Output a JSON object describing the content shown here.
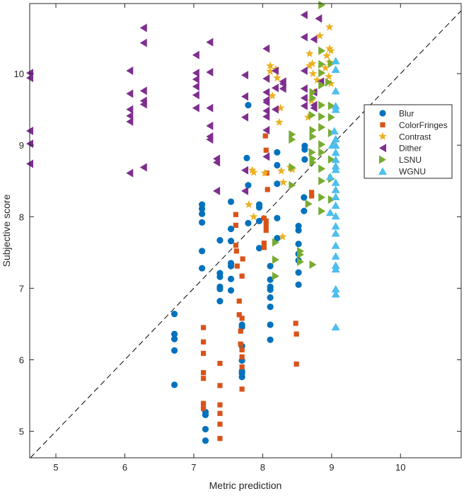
{
  "chart_data": {
    "type": "scatter",
    "title": "",
    "xlabel": "Metric prediction",
    "ylabel": "Subjective score",
    "xlim": [
      4.62,
      10.88
    ],
    "ylim": [
      4.63,
      10.98
    ],
    "xticks": [
      5,
      6,
      7,
      8,
      9,
      10
    ],
    "yticks": [
      5,
      6,
      7,
      8,
      9,
      10
    ],
    "grid": false,
    "legend_position": "right",
    "reference_line": {
      "type": "identity",
      "style": "dashed"
    },
    "series": [
      {
        "name": "Blur",
        "marker": "circle",
        "color": "#0072BD",
        "points": [
          [
            6.72,
            6.64
          ],
          [
            6.72,
            6.36
          ],
          [
            6.72,
            6.29
          ],
          [
            6.72,
            6.13
          ],
          [
            6.72,
            5.65
          ],
          [
            7.12,
            8.17
          ],
          [
            7.12,
            8.11
          ],
          [
            7.12,
            8.04
          ],
          [
            7.12,
            7.92
          ],
          [
            7.12,
            7.52
          ],
          [
            7.12,
            7.28
          ],
          [
            7.17,
            5.27
          ],
          [
            7.17,
            5.23
          ],
          [
            7.17,
            5.03
          ],
          [
            7.17,
            4.87
          ],
          [
            7.38,
            7.67
          ],
          [
            7.38,
            7.21
          ],
          [
            7.38,
            7.16
          ],
          [
            7.38,
            7.02
          ],
          [
            7.38,
            6.99
          ],
          [
            7.38,
            6.82
          ],
          [
            7.54,
            8.21
          ],
          [
            7.54,
            7.83
          ],
          [
            7.54,
            7.66
          ],
          [
            7.54,
            7.35
          ],
          [
            7.54,
            7.31
          ],
          [
            7.54,
            7.13
          ],
          [
            7.54,
            6.97
          ],
          [
            7.7,
            6.49
          ],
          [
            7.7,
            6.46
          ],
          [
            7.7,
            6.19
          ],
          [
            7.7,
            5.99
          ],
          [
            7.7,
            5.84
          ],
          [
            7.7,
            5.81
          ],
          [
            7.7,
            5.76
          ],
          [
            7.79,
            9.56
          ],
          [
            7.77,
            8.82
          ],
          [
            7.79,
            8.44
          ],
          [
            7.79,
            7.91
          ],
          [
            7.95,
            8.17
          ],
          [
            7.95,
            8.13
          ],
          [
            7.95,
            7.94
          ],
          [
            7.95,
            7.56
          ],
          [
            8.11,
            7.31
          ],
          [
            8.11,
            7.12
          ],
          [
            8.11,
            7.02
          ],
          [
            8.11,
            6.98
          ],
          [
            8.11,
            6.87
          ],
          [
            8.11,
            6.74
          ],
          [
            8.11,
            6.49
          ],
          [
            8.11,
            6.28
          ],
          [
            8.21,
            8.9
          ],
          [
            8.21,
            8.72
          ],
          [
            8.21,
            8.46
          ],
          [
            8.21,
            7.98
          ],
          [
            8.21,
            7.7
          ],
          [
            8.52,
            7.87
          ],
          [
            8.52,
            7.81
          ],
          [
            8.52,
            7.62
          ],
          [
            8.52,
            7.48
          ],
          [
            8.52,
            7.39
          ],
          [
            8.52,
            7.22
          ],
          [
            8.52,
            7.05
          ],
          [
            8.6,
            8.27
          ],
          [
            8.6,
            8.08
          ],
          [
            8.61,
            8.99
          ],
          [
            8.61,
            8.94
          ],
          [
            8.61,
            8.8
          ]
        ]
      },
      {
        "name": "ColorFringes",
        "marker": "square",
        "color": "#D95319",
        "points": [
          [
            7.14,
            6.45
          ],
          [
            7.14,
            6.25
          ],
          [
            7.14,
            6.09
          ],
          [
            7.14,
            5.82
          ],
          [
            7.14,
            5.74
          ],
          [
            7.14,
            5.39
          ],
          [
            7.14,
            5.32
          ],
          [
            7.38,
            5.95
          ],
          [
            7.38,
            5.64
          ],
          [
            7.38,
            5.37
          ],
          [
            7.38,
            5.25
          ],
          [
            7.38,
            5.1
          ],
          [
            7.38,
            4.9
          ],
          [
            7.61,
            8.03
          ],
          [
            7.61,
            7.88
          ],
          [
            7.62,
            7.52
          ],
          [
            7.61,
            7.6
          ],
          [
            7.63,
            7.31
          ],
          [
            7.7,
            7.17
          ],
          [
            7.71,
            7.41
          ],
          [
            7.66,
            6.82
          ],
          [
            7.66,
            6.63
          ],
          [
            7.7,
            6.58
          ],
          [
            7.68,
            6.4
          ],
          [
            7.68,
            6.22
          ],
          [
            7.7,
            6.14
          ],
          [
            7.7,
            6.04
          ],
          [
            7.7,
            5.9
          ],
          [
            7.7,
            5.59
          ],
          [
            8.04,
            9.13
          ],
          [
            8.05,
            8.93
          ],
          [
            8.06,
            8.61
          ],
          [
            8.07,
            8.38
          ],
          [
            8.02,
            7.98
          ],
          [
            8.05,
            7.94
          ],
          [
            8.05,
            7.88
          ],
          [
            8.05,
            7.81
          ],
          [
            8.02,
            7.63
          ],
          [
            8.02,
            7.57
          ],
          [
            8.48,
            6.51
          ],
          [
            8.49,
            6.36
          ],
          [
            8.49,
            5.94
          ],
          [
            8.71,
            8.34
          ],
          [
            8.71,
            8.29
          ]
        ]
      },
      {
        "name": "Contrast",
        "marker": "star",
        "color": "#EDB120",
        "points": [
          [
            7.8,
            8.17
          ],
          [
            7.85,
            8.65
          ],
          [
            7.87,
            8.62
          ],
          [
            7.87,
            8.0
          ],
          [
            8.03,
            8.61
          ],
          [
            8.11,
            10.11
          ],
          [
            8.11,
            10.03
          ],
          [
            8.14,
            9.69
          ],
          [
            8.19,
            10.06
          ],
          [
            8.21,
            9.94
          ],
          [
            8.24,
            9.32
          ],
          [
            8.27,
            8.64
          ],
          [
            8.3,
            8.48
          ],
          [
            8.43,
            8.66
          ],
          [
            8.26,
            9.52
          ],
          [
            8.68,
            10.28
          ],
          [
            8.68,
            10.11
          ],
          [
            8.72,
            10.14
          ],
          [
            8.73,
            10.0
          ],
          [
            8.71,
            9.62
          ],
          [
            8.75,
            9.74
          ],
          [
            8.79,
            9.91
          ],
          [
            8.93,
            10.25
          ],
          [
            8.97,
            10.65
          ],
          [
            8.97,
            10.35
          ],
          [
            8.97,
            10.16
          ],
          [
            8.99,
            10.32
          ],
          [
            8.96,
            9.96
          ],
          [
            8.99,
            9.86
          ],
          [
            8.91,
            10.08
          ],
          [
            8.29,
            7.72
          ],
          [
            8.4,
            8.69
          ],
          [
            8.66,
            9.39
          ],
          [
            8.83,
            10.53
          ]
        ]
      },
      {
        "name": "Dither",
        "marker": "triangle-left",
        "color": "#7E2F8E",
        "points": [
          [
            4.62,
            10.01
          ],
          [
            4.62,
            9.94
          ],
          [
            4.62,
            9.2
          ],
          [
            4.62,
            9.02
          ],
          [
            4.62,
            8.74
          ],
          [
            6.07,
            10.04
          ],
          [
            6.07,
            9.72
          ],
          [
            6.07,
            9.5
          ],
          [
            6.07,
            9.41
          ],
          [
            6.07,
            9.33
          ],
          [
            6.07,
            8.61
          ],
          [
            6.27,
            10.64
          ],
          [
            6.27,
            10.43
          ],
          [
            6.27,
            9.76
          ],
          [
            6.27,
            9.62
          ],
          [
            6.27,
            9.57
          ],
          [
            6.27,
            8.69
          ],
          [
            7.03,
            10.26
          ],
          [
            7.03,
            10.01
          ],
          [
            7.03,
            9.92
          ],
          [
            7.03,
            9.82
          ],
          [
            7.03,
            9.7
          ],
          [
            7.03,
            9.52
          ],
          [
            7.23,
            10.44
          ],
          [
            7.23,
            10.02
          ],
          [
            7.23,
            9.52
          ],
          [
            7.23,
            9.27
          ],
          [
            7.23,
            9.12
          ],
          [
            7.23,
            9.08
          ],
          [
            7.33,
            8.81
          ],
          [
            7.33,
            8.76
          ],
          [
            7.33,
            8.36
          ],
          [
            7.74,
            9.98
          ],
          [
            7.74,
            9.68
          ],
          [
            7.74,
            9.39
          ],
          [
            7.74,
            8.65
          ],
          [
            7.74,
            8.36
          ],
          [
            8.05,
            10.35
          ],
          [
            8.05,
            9.93
          ],
          [
            8.05,
            9.74
          ],
          [
            8.05,
            9.63
          ],
          [
            8.05,
            9.6
          ],
          [
            8.05,
            9.48
          ],
          [
            8.05,
            9.4
          ],
          [
            8.05,
            9.21
          ],
          [
            8.05,
            8.84
          ],
          [
            8.18,
            10.04
          ],
          [
            8.18,
            9.8
          ],
          [
            8.18,
            9.5
          ],
          [
            8.29,
            9.89
          ],
          [
            8.29,
            9.86
          ],
          [
            8.29,
            9.79
          ],
          [
            8.6,
            10.82
          ],
          [
            8.6,
            10.51
          ],
          [
            8.6,
            10.04
          ],
          [
            8.6,
            9.79
          ],
          [
            8.6,
            9.66
          ],
          [
            8.6,
            9.55
          ],
          [
            8.74,
            10.48
          ],
          [
            8.74,
            9.74
          ],
          [
            8.74,
            9.56
          ],
          [
            8.74,
            9.52
          ],
          [
            8.81,
            10.77
          ],
          [
            8.84,
            9.89
          ]
        ]
      },
      {
        "name": "LSNU",
        "marker": "triangle-right",
        "color": "#77AC30",
        "points": [
          [
            8.19,
            7.64
          ],
          [
            8.19,
            7.4
          ],
          [
            8.19,
            7.17
          ],
          [
            8.43,
            9.15
          ],
          [
            8.43,
            9.08
          ],
          [
            8.43,
            8.69
          ],
          [
            8.43,
            8.44
          ],
          [
            8.55,
            7.52
          ],
          [
            8.55,
            7.47
          ],
          [
            8.55,
            7.37
          ],
          [
            8.73,
            8.81
          ],
          [
            8.73,
            8.76
          ],
          [
            8.73,
            9.12
          ],
          [
            8.73,
            9.21
          ],
          [
            8.73,
            7.33
          ],
          [
            8.73,
            9.66
          ],
          [
            8.73,
            9.74
          ],
          [
            8.86,
            10.96
          ],
          [
            8.86,
            10.32
          ],
          [
            8.86,
            10.13
          ],
          [
            8.86,
            10.01
          ],
          [
            8.86,
            9.84
          ],
          [
            8.86,
            9.56
          ],
          [
            8.86,
            9.4
          ],
          [
            8.86,
            9.25
          ],
          [
            8.86,
            9.01
          ],
          [
            8.86,
            8.9
          ],
          [
            8.86,
            8.67
          ],
          [
            8.86,
            8.5
          ],
          [
            8.86,
            8.27
          ],
          [
            8.86,
            8.08
          ],
          [
            9.0,
            9.55
          ],
          [
            9.0,
            9.39
          ],
          [
            9.0,
            9.17
          ],
          [
            9.0,
            8.8
          ],
          [
            9.0,
            8.53
          ],
          [
            9.0,
            8.24
          ],
          [
            9.0,
            10.14
          ],
          [
            8.96,
            9.88
          ],
          [
            8.72,
            8.9
          ],
          [
            8.72,
            9.42
          ],
          [
            8.67,
            8.18
          ]
        ]
      },
      {
        "name": "WGNU",
        "marker": "triangle-up",
        "color": "#4DBEEE",
        "points": [
          [
            9.06,
            10.18
          ],
          [
            9.06,
            10.06
          ],
          [
            9.06,
            9.76
          ],
          [
            9.06,
            9.55
          ],
          [
            9.06,
            9.5
          ],
          [
            9.04,
            9.2
          ],
          [
            9.06,
            9.09
          ],
          [
            9.06,
            9.0
          ],
          [
            9.06,
            8.9
          ],
          [
            9.06,
            8.8
          ],
          [
            9.06,
            8.71
          ],
          [
            9.06,
            8.66
          ],
          [
            9.06,
            8.48
          ],
          [
            9.06,
            8.38
          ],
          [
            9.06,
            8.28
          ],
          [
            9.06,
            8.16
          ],
          [
            9.06,
            8.01
          ],
          [
            9.06,
            7.87
          ],
          [
            9.06,
            7.77
          ],
          [
            9.06,
            7.6
          ],
          [
            9.06,
            7.45
          ],
          [
            9.06,
            7.32
          ],
          [
            9.06,
            7.27
          ],
          [
            9.06,
            6.99
          ],
          [
            9.06,
            6.92
          ],
          [
            9.06,
            6.46
          ],
          [
            8.98,
            8.56
          ],
          [
            8.98,
            8.06
          ],
          [
            9.01,
            9.0
          ]
        ]
      }
    ]
  }
}
